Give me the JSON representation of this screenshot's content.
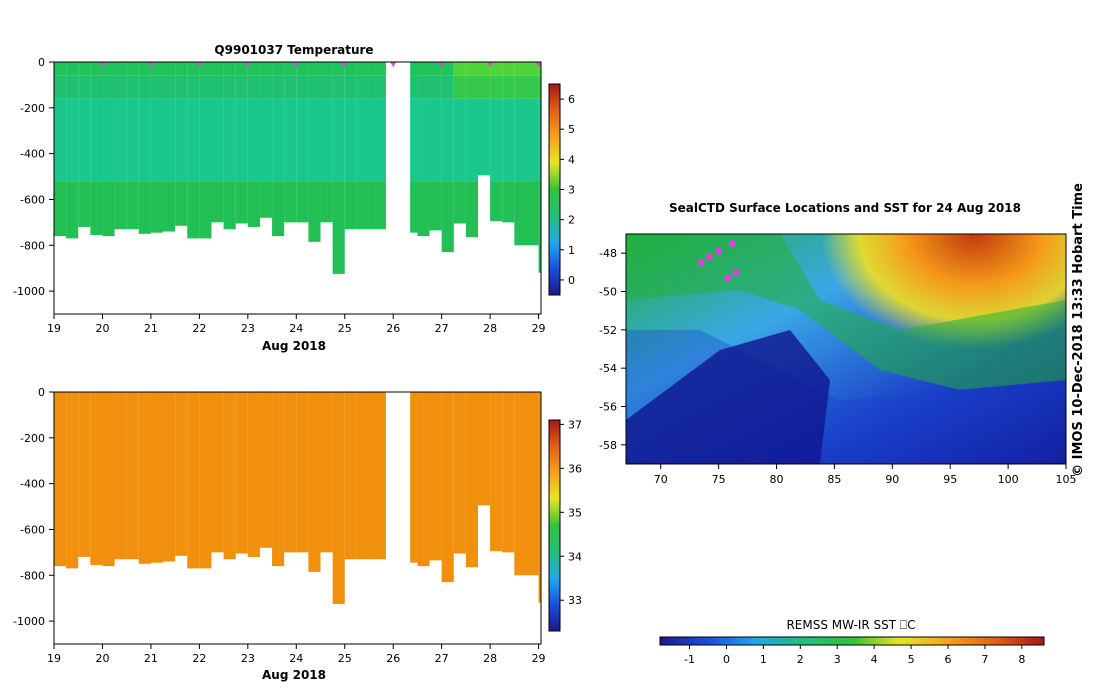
{
  "chart_data": [
    {
      "id": "temperature",
      "type": "heatmap",
      "title": "Q9901037  Temperature",
      "xlabel": "Aug 2018",
      "x_ticks": [
        "19",
        "20",
        "21",
        "22",
        "23",
        "24",
        "25",
        "26",
        "27",
        "28",
        "29"
      ],
      "xlim": [
        19,
        29.05
      ],
      "ylim": [
        -1100,
        0
      ],
      "y_ticks": [
        "0",
        "-200",
        "-400",
        "-600",
        "-800",
        "-1000"
      ],
      "y_tick_values": [
        0,
        -200,
        -400,
        -600,
        -800,
        -1000
      ],
      "profile_times": [
        19,
        19.25,
        19.5,
        19.75,
        20,
        20.25,
        20.5,
        20.75,
        21,
        21.25,
        21.5,
        21.75,
        22,
        22.25,
        22.5,
        22.75,
        23,
        23.25,
        23.5,
        23.75,
        24,
        24.25,
        24.5,
        24.75,
        25,
        25.25,
        25.5,
        26.35,
        26.5,
        26.75,
        27,
        27.25,
        27.5,
        27.75,
        28,
        28.25,
        28.5,
        28.75,
        29
      ],
      "profile_depths": [
        -760,
        -770,
        -720,
        -755,
        -760,
        -730,
        -730,
        -750,
        -745,
        -740,
        -715,
        -770,
        -770,
        -700,
        -730,
        -705,
        -720,
        -680,
        -760,
        -700,
        -700,
        -785,
        -700,
        -925,
        -730,
        -730,
        -730,
        -745,
        -760,
        -735,
        -830,
        -705,
        -765,
        -495,
        -695,
        -700,
        -800,
        -800,
        -920
      ],
      "gap": [
        25.85,
        26.35
      ],
      "surface_markers": [
        20,
        21,
        22,
        23,
        24,
        25,
        26,
        27,
        28,
        29
      ],
      "colorbar": {
        "ticks": [
          "6",
          "5",
          "4",
          "3",
          "2",
          "1",
          "0"
        ],
        "tick_values": [
          6,
          5,
          4,
          3,
          2,
          1,
          0
        ],
        "range": [
          -0.5,
          6.5
        ]
      },
      "values_note": "~2.6 near surface, ~2.9 at 200-500 m, ~2.5 at depth; warmer 3.2 near surface after 27 Aug"
    },
    {
      "id": "salinity",
      "type": "heatmap",
      "title": "",
      "xlabel": "Aug 2018",
      "x_ticks": [
        "19",
        "20",
        "21",
        "22",
        "23",
        "24",
        "25",
        "26",
        "27",
        "28",
        "29"
      ],
      "y_ticks": [
        "0",
        "-200",
        "-400",
        "-600",
        "-800",
        "-1000"
      ],
      "y_tick_values": [
        0,
        -200,
        -400,
        -600,
        -800,
        -1000
      ],
      "colorbar": {
        "ticks": [
          "37",
          "36",
          "35",
          "34",
          "33"
        ],
        "tick_values": [
          37,
          36,
          35,
          34,
          33
        ],
        "range": [
          32.3,
          37.1
        ]
      },
      "value": 35.7
    },
    {
      "id": "sst_map",
      "type": "heatmap",
      "title": "SealCTD Surface Locations and SST for 24 Aug 2018",
      "x_ticks": [
        "70",
        "75",
        "80",
        "85",
        "90",
        "95",
        "100",
        "105"
      ],
      "x_tick_values": [
        70,
        75,
        80,
        85,
        90,
        95,
        100,
        105
      ],
      "y_ticks": [
        "-48",
        "-50",
        "-52",
        "-54",
        "-56",
        "-58"
      ],
      "y_tick_values": [
        -48,
        -50,
        -52,
        -54,
        -56,
        -58
      ],
      "xlim": [
        67,
        105
      ],
      "ylim": [
        -59,
        -47
      ],
      "track_points": [
        [
          73.5,
          -48.5
        ],
        [
          74.2,
          -48.2
        ],
        [
          75.0,
          -47.9
        ],
        [
          76.2,
          -47.5
        ],
        [
          75.8,
          -49.3
        ],
        [
          76.5,
          -49.0
        ]
      ],
      "credit": "© IMOS 10-Dec-2018 13:33 Hobart Time",
      "colorbar_label": "REMSS MW-IR SST ⎕C",
      "colorbar_ticks": [
        "-1",
        "0",
        "1",
        "2",
        "3",
        "4",
        "5",
        "6",
        "7",
        "8"
      ],
      "colorbar_tick_values": [
        -1,
        0,
        1,
        2,
        3,
        4,
        5,
        6,
        7,
        8
      ],
      "colorbar_range": [
        -1.8,
        8.6
      ]
    }
  ]
}
